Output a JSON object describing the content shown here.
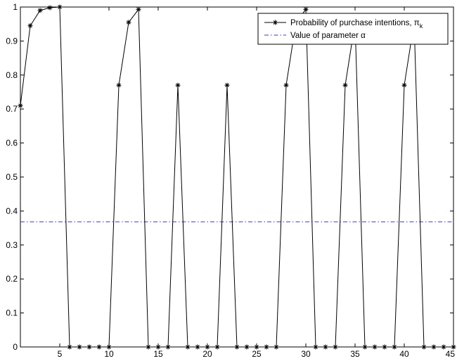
{
  "chart_data": {
    "type": "line",
    "title": "",
    "xlabel": "",
    "ylabel": "",
    "xlim": [
      1,
      45
    ],
    "ylim": [
      0,
      1
    ],
    "xticks": [
      5,
      10,
      15,
      20,
      25,
      30,
      35,
      40,
      45
    ],
    "yticks": [
      0,
      0.1,
      0.2,
      0.3,
      0.4,
      0.5,
      0.6,
      0.7,
      0.8,
      0.9,
      1
    ],
    "grid": false,
    "legend_position": "top-right",
    "series": [
      {
        "name": "Probability of purchase intentions, π",
        "name_subscript": "k",
        "color": "#000000",
        "marker": "asterisk",
        "x": [
          1,
          2,
          3,
          4,
          5,
          6,
          7,
          8,
          9,
          10,
          11,
          12,
          13,
          14,
          15,
          16,
          17,
          18,
          19,
          20,
          21,
          22,
          23,
          24,
          25,
          26,
          27,
          28,
          29,
          30,
          31,
          32,
          33,
          34,
          35,
          36,
          37,
          38,
          39,
          40,
          41,
          42,
          43,
          44,
          45
        ],
        "y": [
          0.71,
          0.945,
          0.99,
          0.998,
          1.0,
          0,
          0,
          0,
          0,
          0,
          0.77,
          0.955,
          0.993,
          0,
          0,
          0,
          0.77,
          0,
          0,
          0,
          0,
          0.77,
          0,
          0,
          0,
          0,
          0,
          0.77,
          0.955,
          0.993,
          0,
          0,
          0,
          0.77,
          0.955,
          0,
          0,
          0,
          0,
          0.77,
          0.955,
          0,
          0,
          0,
          0
        ]
      },
      {
        "name": "Value of parameter α",
        "color": "#3a3ac8",
        "style": "dash-dot",
        "y_constant": 0.368
      }
    ]
  }
}
